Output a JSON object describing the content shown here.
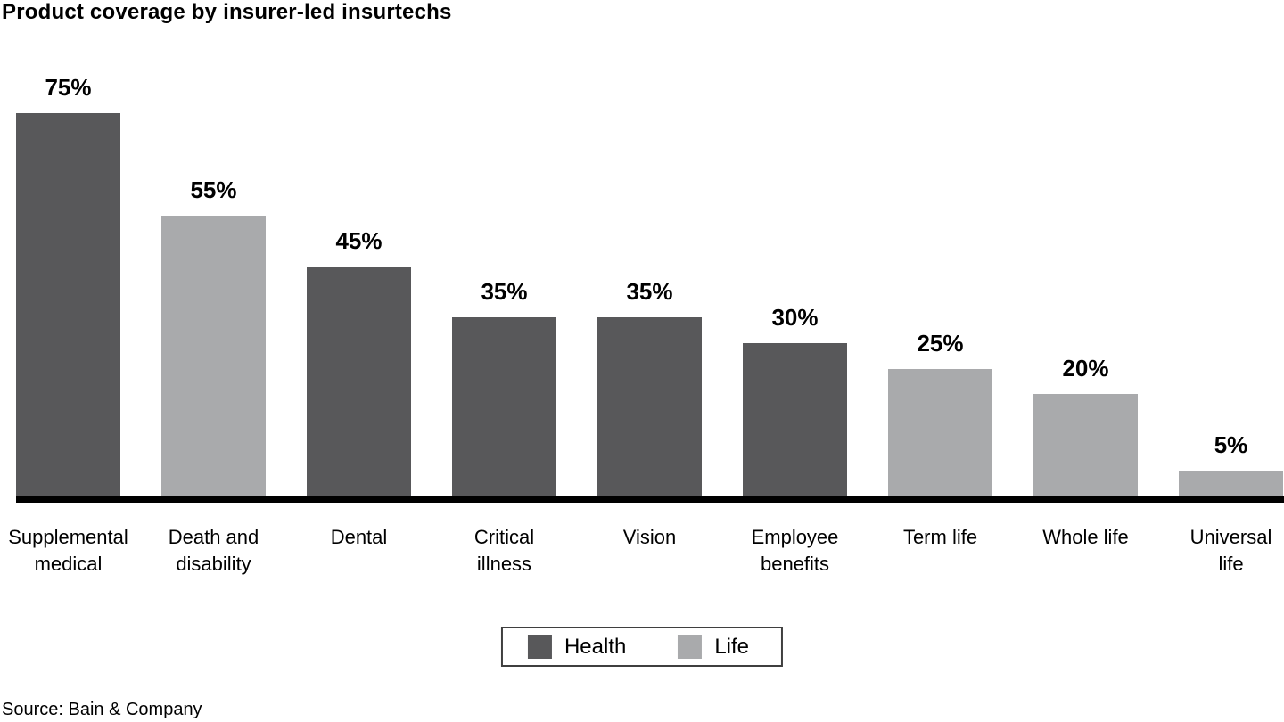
{
  "chart_data": {
    "type": "bar",
    "title": "Product coverage by insurer-led insurtechs",
    "source": "Source: Bain & Company",
    "unit": "%",
    "ylim": [
      0,
      80
    ],
    "grid": false,
    "legend_position": "bottom-center",
    "colors": {
      "Health": "#58585a",
      "Life": "#a9aaac"
    },
    "legend": [
      {
        "label": "Health",
        "group": "Health"
      },
      {
        "label": "Life",
        "group": "Life"
      }
    ],
    "categories": [
      "Supplemental medical",
      "Death and disability",
      "Dental",
      "Critical illness",
      "Vision",
      "Employee benefits",
      "Term life",
      "Whole life",
      "Universal life"
    ],
    "values": [
      75,
      55,
      45,
      35,
      35,
      30,
      25,
      20,
      5
    ],
    "bars": [
      {
        "category": "Supplemental medical",
        "display_lines": "Supplemental\nmedical",
        "value": 75,
        "value_label": "75%",
        "group": "Health"
      },
      {
        "category": "Death and disability",
        "display_lines": "Death and\ndisability",
        "value": 55,
        "value_label": "55%",
        "group": "Life"
      },
      {
        "category": "Dental",
        "display_lines": "Dental",
        "value": 45,
        "value_label": "45%",
        "group": "Health"
      },
      {
        "category": "Critical illness",
        "display_lines": "Critical\nillness",
        "value": 35,
        "value_label": "35%",
        "group": "Health"
      },
      {
        "category": "Vision",
        "display_lines": "Vision",
        "value": 35,
        "value_label": "35%",
        "group": "Health"
      },
      {
        "category": "Employee benefits",
        "display_lines": "Employee\nbenefits",
        "value": 30,
        "value_label": "30%",
        "group": "Health"
      },
      {
        "category": "Term life",
        "display_lines": "Term life",
        "value": 25,
        "value_label": "25%",
        "group": "Life"
      },
      {
        "category": "Whole life",
        "display_lines": "Whole life",
        "value": 20,
        "value_label": "20%",
        "group": "Life"
      },
      {
        "category": "Universal life",
        "display_lines": "Universal\nlife",
        "value": 5,
        "value_label": "5%",
        "group": "Life"
      }
    ]
  }
}
